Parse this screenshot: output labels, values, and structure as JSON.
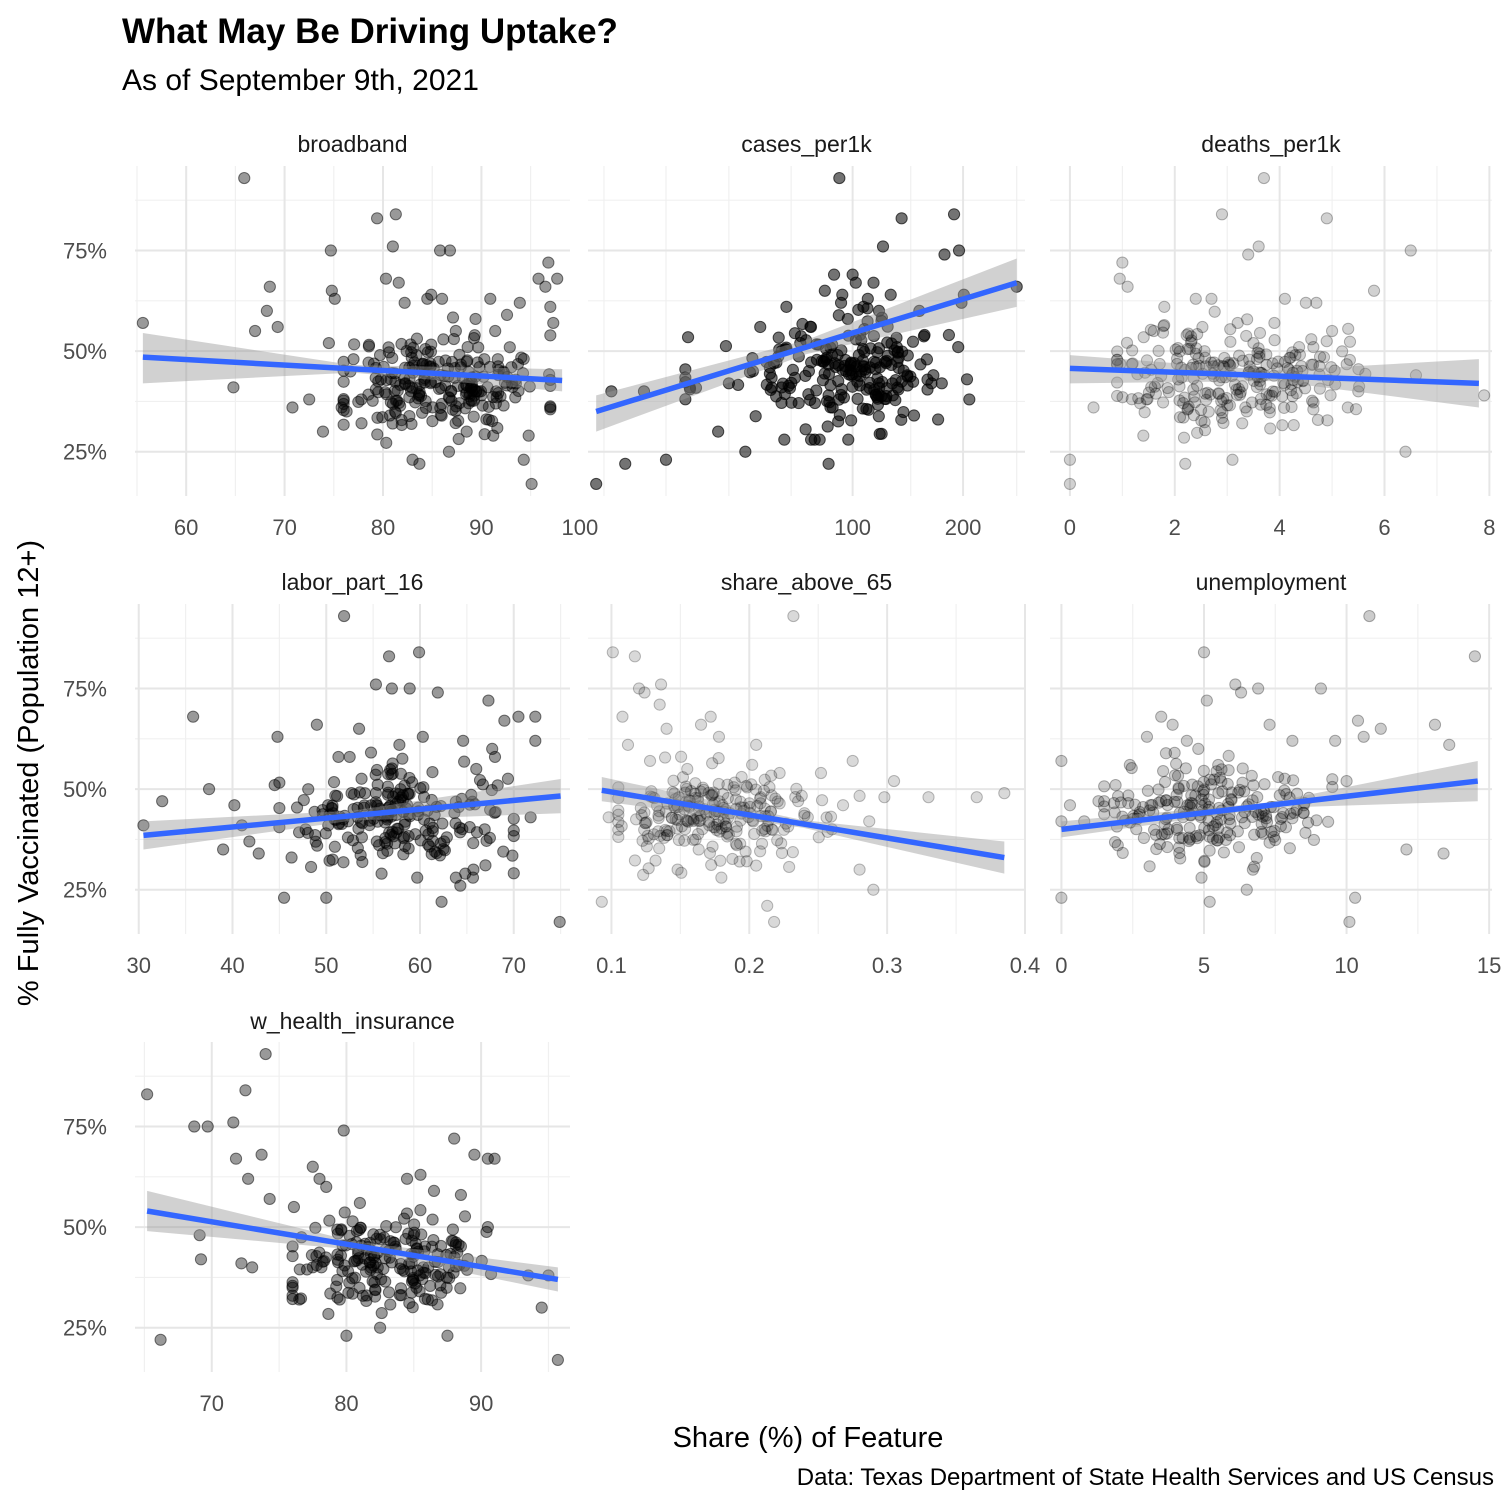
{
  "chart_data": {
    "type": "scatter",
    "title": "What May Be Driving Uptake?",
    "subtitle": "As of September 9th, 2021",
    "caption": "Data: Texas Department of State Health Services and US Census",
    "xlabel": "Share (%) of Feature",
    "ylabel": "% Fully Vaccinated (Population 12+)",
    "ylim": [
      0.14,
      0.96
    ],
    "y_ticks": [
      0.25,
      0.5,
      0.75
    ],
    "y_tick_labels": [
      "25%",
      "50%",
      "75%"
    ],
    "grid": true,
    "facets": [
      {
        "name": "broadband",
        "x_scale": "linear",
        "xlim": [
          54.8,
          99
        ],
        "x_ticks": [
          60,
          70,
          80,
          90,
          100
        ],
        "x_tick_labels": [
          "60",
          "70",
          "80",
          "90",
          "100"
        ],
        "point_opacity": 0.4,
        "fit": {
          "x": [
            55.6,
            98.2
          ],
          "y": [
            0.485,
            0.427
          ],
          "band_lo": [
            0.42,
            0.4
          ],
          "band_hi": [
            0.545,
            0.455
          ]
        },
        "seed": 11,
        "points_x": [
          55.6,
          65.9,
          64.8,
          68.5,
          68.2,
          67.0,
          69.3,
          70.8,
          72.5,
          73.9,
          74.5,
          74.7,
          74.8,
          75.1,
          75.8,
          76.3,
          77.0,
          77.8,
          79.4,
          79.7,
          79.8,
          80.3,
          80.7,
          81.0,
          81.3,
          81.6,
          82.2,
          82.4,
          83.0,
          83.4,
          83.7,
          84.5,
          84.9,
          85.8,
          86.8,
          86.7,
          87.2,
          87.4,
          87.9,
          88.6,
          89.4,
          90.0,
          90.9,
          91.2,
          91.4,
          92.6,
          93.1,
          93.9,
          94.3,
          94.8,
          95.1,
          95.8,
          96.5,
          96.8,
          97.0,
          97.3,
          97.7,
          86.0,
          88.5,
          91.5
        ],
        "points_y": [
          0.57,
          0.93,
          0.41,
          0.66,
          0.6,
          0.55,
          0.56,
          0.36,
          0.38,
          0.3,
          0.52,
          0.75,
          0.65,
          0.63,
          0.36,
          0.35,
          0.48,
          0.38,
          0.83,
          0.49,
          0.43,
          0.68,
          0.34,
          0.76,
          0.84,
          0.67,
          0.62,
          0.5,
          0.23,
          0.49,
          0.22,
          0.63,
          0.64,
          0.75,
          0.75,
          0.25,
          0.53,
          0.55,
          0.46,
          0.51,
          0.58,
          0.39,
          0.63,
          0.29,
          0.55,
          0.59,
          0.42,
          0.62,
          0.23,
          0.29,
          0.17,
          0.68,
          0.66,
          0.72,
          0.61,
          0.57,
          0.68,
          0.63,
          0.3,
          0.4
        ],
        "cloud": {
          "n": 220,
          "x_mean": 86,
          "x_sd": 5.2,
          "x_min": 76,
          "x_max": 97,
          "y_mean": 0.42,
          "y_sd": 0.06,
          "y_min": 0.27,
          "y_max": 0.62
        }
      },
      {
        "name": "cases_per1k",
        "x_scale": "log10",
        "xlim": [
          19,
          295
        ],
        "x_ticks": [
          100,
          200
        ],
        "x_tick_labels": [
          "100",
          "200"
        ],
        "x_minor_breaks": [
          21,
          31,
          46,
          68,
          144,
          280
        ],
        "point_opacity": 0.55,
        "fit": {
          "x": [
            20,
            280
          ],
          "y": [
            0.35,
            0.67
          ],
          "band_lo": [
            0.3,
            0.61
          ],
          "band_hi": [
            0.39,
            0.73
          ]
        },
        "seed": 23,
        "points_x": [
          20,
          22,
          24,
          27,
          31,
          36,
          43,
          46,
          51,
          56,
          61,
          64,
          66,
          72,
          77,
          84,
          86,
          86,
          89,
          91,
          92,
          93,
          97,
          100,
          102,
          104,
          107,
          110,
          114,
          118,
          121,
          127,
          132,
          136,
          141,
          147,
          152,
          157,
          164,
          171,
          175,
          178,
          183,
          189,
          194,
          195,
          198,
          201,
          205,
          208,
          280,
          96,
          118,
          166
        ],
        "points_y": [
          0.17,
          0.4,
          0.22,
          0.4,
          0.23,
          0.41,
          0.3,
          0.42,
          0.25,
          0.56,
          0.47,
          0.5,
          0.61,
          0.52,
          0.56,
          0.65,
          0.22,
          0.39,
          0.69,
          0.49,
          0.93,
          0.62,
          0.58,
          0.69,
          0.67,
          0.49,
          0.61,
          0.63,
          0.67,
          0.42,
          0.76,
          0.64,
          0.51,
          0.83,
          0.44,
          0.34,
          0.6,
          0.54,
          0.42,
          0.33,
          0.42,
          0.74,
          0.54,
          0.84,
          0.51,
          0.75,
          0.62,
          0.64,
          0.43,
          0.38,
          0.66,
          0.45,
          0.6,
          0.44
        ],
        "cloud": {
          "n": 200,
          "x_mean": 95,
          "x_sd": 28,
          "x_min": 35,
          "x_max": 160,
          "y_mean": 0.44,
          "y_sd": 0.065,
          "y_min": 0.28,
          "y_max": 0.65
        }
      },
      {
        "name": "deaths_per1k",
        "x_scale": "linear",
        "xlim": [
          -0.38,
          8.05
        ],
        "x_ticks": [
          0,
          2,
          4,
          6,
          8
        ],
        "x_tick_labels": [
          "0",
          "2",
          "4",
          "6",
          "8"
        ],
        "point_opacity": 0.18,
        "fit": {
          "x": [
            0,
            7.8
          ],
          "y": [
            0.457,
            0.42
          ],
          "band_lo": [
            0.42,
            0.36
          ],
          "band_hi": [
            0.49,
            0.48
          ]
        },
        "seed": 37,
        "points_x": [
          0.0,
          0.0,
          0.45,
          0.95,
          1.0,
          1.1,
          1.4,
          1.6,
          1.8,
          2.2,
          2.4,
          2.7,
          2.9,
          3.1,
          3.2,
          3.4,
          3.5,
          3.6,
          3.7,
          3.9,
          4.1,
          4.3,
          4.5,
          4.7,
          4.9,
          5.0,
          5.3,
          5.5,
          5.8,
          6.4,
          6.5,
          6.6,
          7.9
        ],
        "points_y": [
          0.23,
          0.17,
          0.36,
          0.68,
          0.72,
          0.66,
          0.29,
          0.55,
          0.61,
          0.22,
          0.63,
          0.63,
          0.84,
          0.23,
          0.57,
          0.74,
          0.52,
          0.76,
          0.93,
          0.57,
          0.63,
          0.49,
          0.62,
          0.62,
          0.83,
          0.55,
          0.36,
          0.4,
          0.65,
          0.25,
          0.75,
          0.44,
          0.39
        ],
        "cloud": {
          "n": 240,
          "x_mean": 3.0,
          "x_sd": 1.1,
          "x_min": 0.9,
          "x_max": 5.8,
          "y_mean": 0.44,
          "y_sd": 0.065,
          "y_min": 0.27,
          "y_max": 0.64
        }
      },
      {
        "name": "labor_part_16",
        "x_scale": "linear",
        "xlim": [
          29.6,
          76
        ],
        "x_ticks": [
          30,
          40,
          50,
          60,
          70
        ],
        "x_tick_labels": [
          "30",
          "40",
          "50",
          "60",
          "70"
        ],
        "point_opacity": 0.4,
        "fit": {
          "x": [
            30.5,
            75
          ],
          "y": [
            0.385,
            0.483
          ],
          "band_lo": [
            0.35,
            0.44
          ],
          "band_hi": [
            0.42,
            0.525
          ]
        },
        "seed": 41,
        "points_x": [
          30.5,
          32.5,
          35.8,
          37.5,
          39.0,
          40.2,
          41.0,
          41.8,
          42.8,
          44.5,
          44.8,
          45.5,
          46.3,
          47.8,
          49.0,
          50.0,
          50.2,
          51.3,
          51.9,
          52.5,
          52.7,
          53.5,
          55.3,
          55.9,
          56.7,
          57.0,
          57.8,
          58.9,
          59.9,
          60.3,
          61.9,
          62.3,
          64.3,
          64.6,
          65.7,
          66.0,
          66.9,
          67.3,
          67.7,
          68.0,
          69.0,
          70.5,
          71.8,
          72.3,
          72.3,
          74.9
        ],
        "points_y": [
          0.41,
          0.47,
          0.68,
          0.5,
          0.35,
          0.46,
          0.41,
          0.37,
          0.34,
          0.51,
          0.63,
          0.23,
          0.33,
          0.4,
          0.66,
          0.23,
          0.46,
          0.58,
          0.93,
          0.58,
          0.49,
          0.65,
          0.76,
          0.29,
          0.83,
          0.75,
          0.61,
          0.75,
          0.84,
          0.63,
          0.74,
          0.22,
          0.26,
          0.62,
          0.3,
          0.55,
          0.4,
          0.72,
          0.6,
          0.58,
          0.67,
          0.68,
          0.43,
          0.62,
          0.68,
          0.17
        ],
        "cloud": {
          "n": 210,
          "x_mean": 58,
          "x_sd": 6.0,
          "x_min": 45,
          "x_max": 70,
          "y_mean": 0.43,
          "y_sd": 0.06,
          "y_min": 0.28,
          "y_max": 0.62
        }
      },
      {
        "name": "share_above_65",
        "x_scale": "linear",
        "xlim": [
          0.083,
          0.4
        ],
        "x_ticks": [
          0.1,
          0.2,
          0.3,
          0.4
        ],
        "x_tick_labels": [
          "0.1",
          "0.2",
          "0.3",
          "0.4"
        ],
        "point_opacity": 0.15,
        "fit": {
          "x": [
            0.093,
            0.385
          ],
          "y": [
            0.497,
            0.33
          ],
          "band_lo": [
            0.47,
            0.29
          ],
          "band_hi": [
            0.53,
            0.37
          ]
        },
        "seed": 53,
        "points_x": [
          0.093,
          0.098,
          0.101,
          0.108,
          0.112,
          0.117,
          0.12,
          0.124,
          0.128,
          0.136,
          0.14,
          0.148,
          0.155,
          0.165,
          0.172,
          0.178,
          0.186,
          0.193,
          0.205,
          0.213,
          0.218,
          0.222,
          0.232,
          0.24,
          0.252,
          0.26,
          0.268,
          0.275,
          0.28,
          0.287,
          0.29,
          0.298,
          0.305,
          0.33,
          0.365,
          0.385,
          0.135
        ],
        "points_y": [
          0.22,
          0.43,
          0.84,
          0.68,
          0.61,
          0.83,
          0.75,
          0.74,
          0.57,
          0.76,
          0.65,
          0.3,
          0.55,
          0.66,
          0.68,
          0.63,
          0.44,
          0.32,
          0.61,
          0.21,
          0.17,
          0.54,
          0.93,
          0.44,
          0.54,
          0.4,
          0.46,
          0.57,
          0.3,
          0.42,
          0.25,
          0.48,
          0.52,
          0.48,
          0.48,
          0.49,
          0.71
        ],
        "cloud": {
          "n": 230,
          "x_mean": 0.175,
          "x_sd": 0.04,
          "x_min": 0.105,
          "x_max": 0.28,
          "y_mean": 0.43,
          "y_sd": 0.06,
          "y_min": 0.28,
          "y_max": 0.62
        }
      },
      {
        "name": "unemployment",
        "x_scale": "linear",
        "xlim": [
          -0.4,
          15.1
        ],
        "x_ticks": [
          0,
          5,
          10,
          15
        ],
        "x_tick_labels": [
          "0",
          "5",
          "10",
          "15"
        ],
        "point_opacity": 0.2,
        "fit": {
          "x": [
            0,
            14.6
          ],
          "y": [
            0.4,
            0.52
          ],
          "band_lo": [
            0.38,
            0.47
          ],
          "band_hi": [
            0.42,
            0.57
          ]
        },
        "seed": 67,
        "points_x": [
          0.0,
          0.0,
          0.0,
          0.3,
          0.8,
          1.3,
          1.9,
          2.4,
          3.0,
          3.5,
          3.9,
          4.4,
          4.8,
          5.0,
          5.1,
          5.2,
          5.5,
          6.1,
          6.3,
          6.5,
          6.9,
          7.3,
          7.6,
          8.1,
          8.5,
          9.1,
          9.6,
          10.0,
          10.1,
          10.3,
          10.4,
          10.6,
          10.8,
          11.2,
          12.1,
          13.1,
          13.4,
          13.6,
          14.5
        ],
        "points_y": [
          0.57,
          0.42,
          0.23,
          0.46,
          0.42,
          0.47,
          0.51,
          0.56,
          0.63,
          0.68,
          0.66,
          0.62,
          0.6,
          0.84,
          0.72,
          0.22,
          0.56,
          0.76,
          0.74,
          0.25,
          0.75,
          0.66,
          0.53,
          0.62,
          0.46,
          0.75,
          0.62,
          0.52,
          0.17,
          0.23,
          0.67,
          0.63,
          0.93,
          0.65,
          0.35,
          0.66,
          0.34,
          0.61,
          0.83
        ],
        "cloud": {
          "n": 220,
          "x_mean": 5.0,
          "x_sd": 1.8,
          "x_min": 1.5,
          "x_max": 9.5,
          "y_mean": 0.43,
          "y_sd": 0.06,
          "y_min": 0.28,
          "y_max": 0.62
        }
      },
      {
        "name": "w_health_insurance",
        "x_scale": "linear",
        "xlim": [
          64.3,
          96.6
        ],
        "x_ticks": [
          70,
          80,
          90
        ],
        "x_tick_labels": [
          "70",
          "80",
          "90"
        ],
        "point_opacity": 0.4,
        "fit": {
          "x": [
            65.2,
            95.7
          ],
          "y": [
            0.54,
            0.37
          ],
          "band_lo": [
            0.49,
            0.34
          ],
          "band_hi": [
            0.59,
            0.4
          ]
        },
        "seed": 79,
        "points_x": [
          65.2,
          66.2,
          68.7,
          69.1,
          69.2,
          69.7,
          71.6,
          71.8,
          72.2,
          72.5,
          72.7,
          73.0,
          73.7,
          74.0,
          74.3,
          76.1,
          76.5,
          77.5,
          78.0,
          78.5,
          79.5,
          79.8,
          80.0,
          81.0,
          81.5,
          82.5,
          84.5,
          85.5,
          86.5,
          87.5,
          88.0,
          88.5,
          89.5,
          90.5,
          90.5,
          91.0,
          93.5,
          94.5,
          95.0,
          95.7
        ],
        "points_y": [
          0.83,
          0.22,
          0.75,
          0.48,
          0.42,
          0.75,
          0.76,
          0.67,
          0.41,
          0.84,
          0.62,
          0.4,
          0.68,
          0.93,
          0.57,
          0.55,
          0.32,
          0.65,
          0.62,
          0.6,
          0.32,
          0.74,
          0.23,
          0.56,
          0.33,
          0.25,
          0.62,
          0.63,
          0.59,
          0.23,
          0.72,
          0.58,
          0.68,
          0.67,
          0.5,
          0.67,
          0.38,
          0.3,
          0.38,
          0.17
        ],
        "cloud": {
          "n": 200,
          "x_mean": 83,
          "x_sd": 3.6,
          "x_min": 76,
          "x_max": 92,
          "y_mean": 0.42,
          "y_sd": 0.055,
          "y_min": 0.28,
          "y_max": 0.6
        }
      }
    ]
  }
}
